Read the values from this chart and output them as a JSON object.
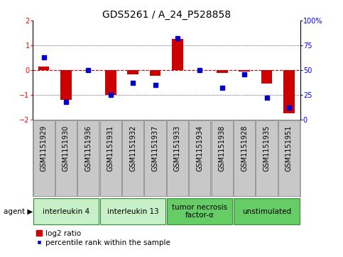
{
  "title": "GDS5261 / A_24_P528858",
  "samples": [
    "GSM1151929",
    "GSM1151930",
    "GSM1151936",
    "GSM1151931",
    "GSM1151932",
    "GSM1151937",
    "GSM1151933",
    "GSM1151934",
    "GSM1151938",
    "GSM1151928",
    "GSM1151935",
    "GSM1151951"
  ],
  "log2_ratio": [
    0.15,
    -1.2,
    0.0,
    -1.0,
    -0.18,
    -0.22,
    1.27,
    0.0,
    -0.13,
    -0.07,
    -0.55,
    -1.75
  ],
  "percentile": [
    63,
    18,
    50,
    25,
    37,
    35,
    82,
    50,
    32,
    46,
    22,
    12
  ],
  "agents": [
    {
      "label": "interleukin 4",
      "start": 0,
      "end": 3,
      "color": "#c8f0c8"
    },
    {
      "label": "interleukin 13",
      "start": 3,
      "end": 6,
      "color": "#c8f0c8"
    },
    {
      "label": "tumor necrosis\nfactor-α",
      "start": 6,
      "end": 9,
      "color": "#66cc66"
    },
    {
      "label": "unstimulated",
      "start": 9,
      "end": 12,
      "color": "#66cc66"
    }
  ],
  "ylim": [
    -2,
    2
  ],
  "yticks_left": [
    -2,
    -1,
    0,
    1,
    2
  ],
  "yticks_right": [
    0,
    25,
    50,
    75,
    100
  ],
  "bar_color": "#cc0000",
  "dot_color": "#0000cc",
  "bg_color": "#ffffff",
  "plot_bg": "#ffffff",
  "zero_line_color": "#cc0000",
  "sample_box_color": "#c8c8c8",
  "sample_box_edge": "#888888",
  "agent_label_fontsize": 7.5,
  "tick_label_fontsize": 7,
  "title_fontsize": 10,
  "legend_fontsize": 7.5
}
